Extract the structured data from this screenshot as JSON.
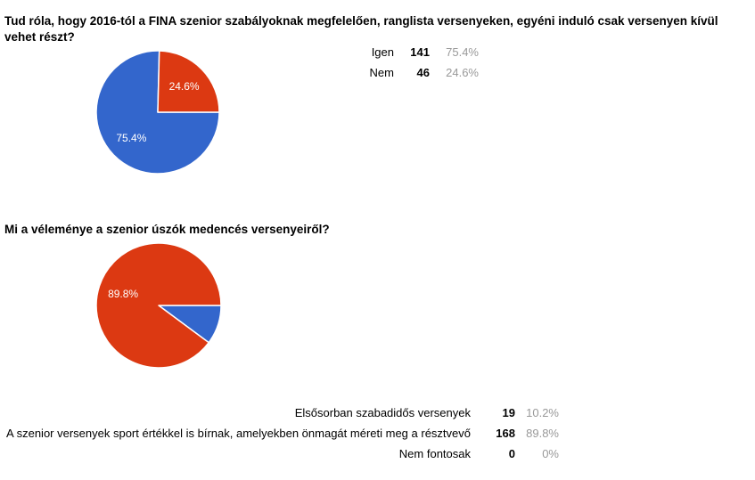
{
  "page": {
    "background": "#ffffff"
  },
  "palette": {
    "series_blue": "#3366CC",
    "series_red": "#DC3912",
    "legend_percent_text": "#999999",
    "legend_label_text": "#000000",
    "slice_label_text": "#ffffff",
    "title_text": "#000000"
  },
  "chart_data": [
    {
      "type": "pie",
      "title": "Tud róla, hogy 2016-tól a FINA szenior szabályoknak megfelelően, ranglista versenyeken, egyéni induló csak versenyen kívül vehet részt?",
      "categories": [
        "Igen",
        "Nem"
      ],
      "values": [
        141,
        46
      ],
      "percents": [
        "75.4%",
        "24.6%"
      ],
      "colors": [
        "#3366CC",
        "#DC3912"
      ],
      "slice_label_visible": [
        true,
        true
      ],
      "start_angle_deg": 90,
      "direction": "clockwise",
      "legend_position": "right-of-pie"
    },
    {
      "type": "pie",
      "title": "Mi a véleménye a szenior úszók medencés versenyeiről?",
      "categories": [
        "Elsősorban szabadidős versenyek",
        "A szenior versenyek sport értékkel is bírnak, amelyekben önmagát méreti meg a résztvevő",
        "Nem fontosak"
      ],
      "values": [
        19,
        168,
        0
      ],
      "percents": [
        "10.2%",
        "89.8%",
        "0%"
      ],
      "colors": [
        "#3366CC",
        "#DC3912",
        null
      ],
      "slice_label_visible": [
        false,
        true,
        false
      ],
      "start_angle_deg": 90,
      "direction": "clockwise",
      "legend_position": "below-pie"
    }
  ]
}
